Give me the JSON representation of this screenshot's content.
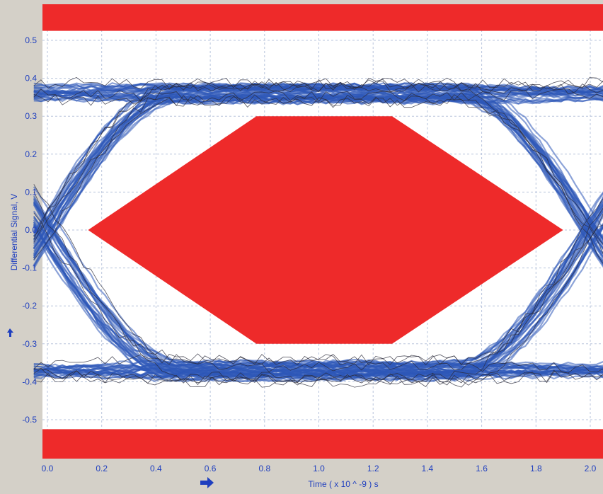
{
  "chart_data": {
    "type": "line",
    "title": "",
    "xlabel": "Time  ( x 10 ^ -9 ) s",
    "ylabel": "Differential Signal, V",
    "xlim": [
      0.0,
      2.0
    ],
    "ylim": [
      -0.6,
      0.6
    ],
    "grid": true,
    "x_ticks": [
      {
        "value": 0.0,
        "label": "0.0"
      },
      {
        "value": 0.2,
        "label": "0.2"
      },
      {
        "value": 0.4,
        "label": "0.4"
      },
      {
        "value": 0.6,
        "label": "0.6"
      },
      {
        "value": 0.8,
        "label": "0.8"
      },
      {
        "value": 1.0,
        "label": "1.0"
      },
      {
        "value": 1.2,
        "label": "1.2"
      },
      {
        "value": 1.4,
        "label": "1.4"
      },
      {
        "value": 1.6,
        "label": "1.6"
      },
      {
        "value": 1.8,
        "label": "1.8"
      },
      {
        "value": 2.0,
        "label": "2.0"
      }
    ],
    "y_ticks": [
      {
        "value": 0.5,
        "label": "0.5"
      },
      {
        "value": 0.4,
        "label": "0.4"
      },
      {
        "value": 0.3,
        "label": "0.3"
      },
      {
        "value": 0.2,
        "label": "0.2"
      },
      {
        "value": 0.1,
        "label": "0.1"
      },
      {
        "value": 0.0,
        "label": "0.0"
      },
      {
        "value": -0.1,
        "label": "-0.1"
      },
      {
        "value": -0.2,
        "label": "-0.2"
      },
      {
        "value": -0.3,
        "label": "-0.3"
      },
      {
        "value": -0.4,
        "label": "-0.4"
      },
      {
        "value": -0.5,
        "label": "-0.5"
      }
    ],
    "eye_mask": {
      "color": "#ee2a2a",
      "points": [
        [
          0.15,
          0.0
        ],
        [
          0.77,
          0.3
        ],
        [
          1.27,
          0.3
        ],
        [
          1.9,
          0.0
        ],
        [
          1.27,
          -0.3
        ],
        [
          0.77,
          -0.3
        ]
      ]
    },
    "upper_limit_band": {
      "color": "#ee2a2a",
      "from": 0.525,
      "to": 0.6
    },
    "lower_limit_band": {
      "color": "#ee2a2a",
      "from": -0.6,
      "to": -0.525
    },
    "eye_diagram": {
      "color": "#2e57b8",
      "trace_color": "#2b2b3a",
      "levels": [
        0.36,
        -0.37
      ],
      "level_spread": 0.03,
      "crossing_times": [
        0.0,
        2.0
      ],
      "transition_width": 0.5
    }
  }
}
